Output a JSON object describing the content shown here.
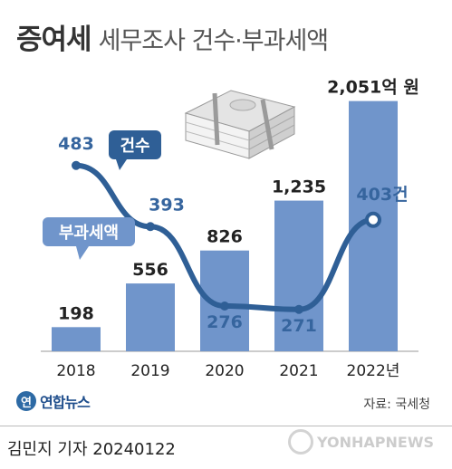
{
  "title": {
    "main": "증여세",
    "sub": "세무조사 건수·부과세액"
  },
  "chart_data": {
    "type": "bar",
    "categories": [
      "2018",
      "2019",
      "2020",
      "2021",
      "2022년"
    ],
    "series": [
      {
        "name": "부과세액",
        "type": "bar",
        "values": [
          198,
          556,
          826,
          1235,
          2051
        ],
        "labels": [
          "198",
          "556",
          "826",
          "1,235",
          "2,051억 원"
        ],
        "color": "#7095cb"
      },
      {
        "name": "건수",
        "type": "line",
        "values": [
          483,
          393,
          276,
          271,
          403
        ],
        "labels": [
          "483",
          "393",
          "276",
          "271",
          "403건"
        ],
        "color": "#2f5f96"
      }
    ],
    "ylim_bar": [
      0,
      2100
    ],
    "ylim_line": [
      200,
      600
    ],
    "legend": {
      "line_tag": "건수",
      "bar_tag": "부과세액"
    }
  },
  "colors": {
    "bar": "#7095cb",
    "line": "#2f5f96",
    "line_label": "#36659e",
    "text": "#222222"
  },
  "logo": {
    "icon": "연",
    "text": "연합뉴스"
  },
  "source": "자료: 국세청",
  "reporter": "김민지 기자  20240122",
  "watermark": "YONHAPNEWS"
}
